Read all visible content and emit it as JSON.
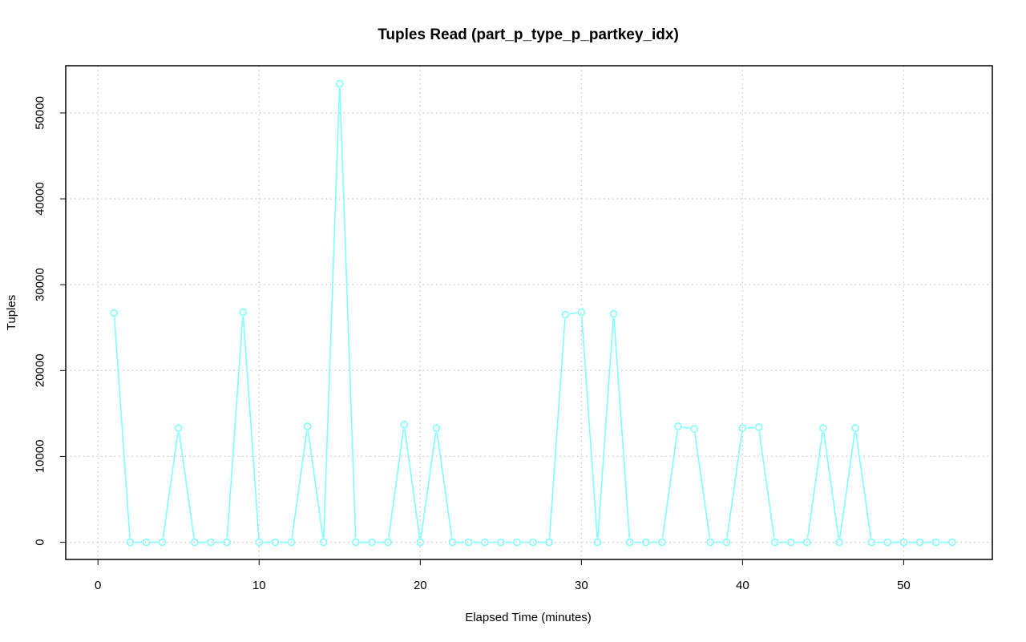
{
  "colors": {
    "series": "#7fffff",
    "grid": "#c8c8c8",
    "frame": "#000000"
  },
  "chart_data": {
    "type": "line",
    "title": "Tuples Read (part_p_type_p_partkey_idx)",
    "xlabel": "Elapsed Time (minutes)",
    "ylabel": "Tuples",
    "xlim": [
      -2,
      55.5
    ],
    "ylim": [
      -2000,
      55500
    ],
    "xticks": [
      0,
      10,
      20,
      30,
      40,
      50
    ],
    "yticks": [
      0,
      10000,
      20000,
      30000,
      40000,
      50000
    ],
    "xtick_labels": [
      "0",
      "10",
      "20",
      "30",
      "40",
      "50"
    ],
    "ytick_labels": [
      "0",
      "10000",
      "20000",
      "30000",
      "40000",
      "50000"
    ],
    "grid": true,
    "series": [
      {
        "markers": "open-circle",
        "color": "#7fffff",
        "x": [
          1,
          2,
          3,
          4,
          5,
          6,
          7,
          8,
          9,
          10,
          11,
          12,
          13,
          14,
          15,
          16,
          17,
          18,
          19,
          20,
          21,
          22,
          23,
          24,
          25,
          26,
          27,
          28,
          29,
          30,
          31,
          32,
          33,
          34,
          35,
          36,
          37,
          38,
          39,
          40,
          41,
          42,
          43,
          44,
          45,
          46,
          47,
          48,
          49,
          50,
          51,
          52,
          53
        ],
        "y": [
          26700,
          0,
          0,
          0,
          13300,
          0,
          0,
          0,
          26800,
          0,
          0,
          0,
          13500,
          0,
          53400,
          0,
          0,
          0,
          13700,
          0,
          13300,
          0,
          0,
          0,
          0,
          0,
          0,
          0,
          26500,
          26800,
          0,
          26600,
          0,
          0,
          0,
          13500,
          13200,
          0,
          0,
          13300,
          13400,
          0,
          0,
          0,
          13300,
          0,
          13300,
          0,
          0,
          0,
          0,
          0,
          0
        ]
      }
    ]
  }
}
